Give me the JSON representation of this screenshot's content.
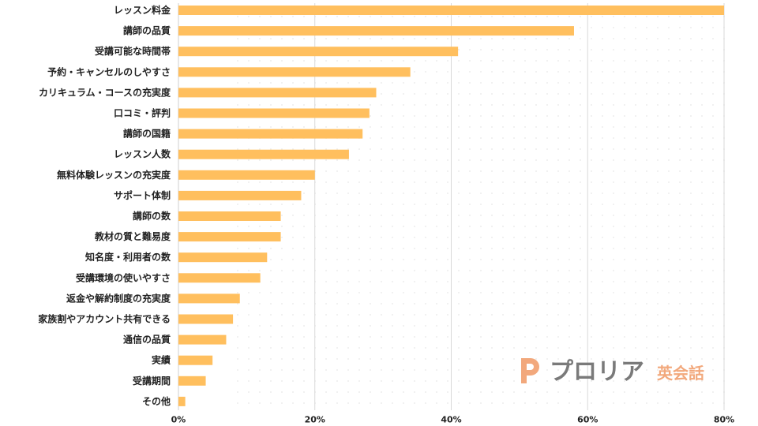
{
  "chart_data": {
    "type": "bar",
    "orientation": "horizontal",
    "categories": [
      "レッスン料金",
      "講師の品質",
      "受講可能な時間帯",
      "予約・キャンセルのしやすさ",
      "カリキュラム・コースの充実度",
      "口コミ・評判",
      "講師の国籍",
      "レッスン人数",
      "無料体験レッスンの充実度",
      "サポート体制",
      "講師の数",
      "教材の質と難易度",
      "知名度・利用者の数",
      "受講環境の使いやすさ",
      "返金や解約制度の充実度",
      "家族割やアカウント共有できる",
      "通信の品質",
      "実績",
      "受講期間",
      "その他"
    ],
    "values": [
      80,
      58,
      41,
      34,
      29,
      28,
      27,
      25,
      20,
      18,
      15,
      15,
      13,
      12,
      9,
      8,
      7,
      5,
      4,
      1
    ],
    "xlim": [
      0,
      80
    ],
    "xticks": [
      0,
      20,
      40,
      60,
      80
    ],
    "tick_labels": [
      "0%",
      "20%",
      "40%",
      "60%",
      "80%"
    ],
    "grid": true,
    "bar_color": "#ffbf5e",
    "title": "",
    "xlabel": "",
    "ylabel": ""
  },
  "logo": {
    "name": "プロリア",
    "suffix": "英会話",
    "mark_color": "#f2a87c",
    "name_color": "#7a7a7a",
    "suffix_color": "#f2a87c"
  }
}
